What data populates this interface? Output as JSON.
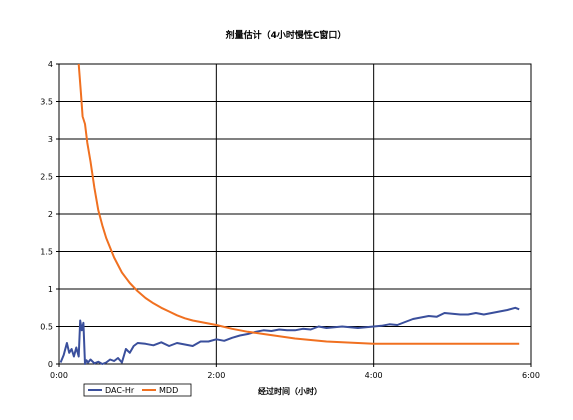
{
  "chart_data": {
    "type": "line",
    "title": "剂量估计（4小时慢性C窗口）",
    "xlabel": "经过时间（小时）",
    "ylabel": "",
    "xlim": [
      0,
      6
    ],
    "ylim": [
      0,
      4
    ],
    "x_tick_labels": [
      "0:00",
      "2:00",
      "4:00",
      "6:00"
    ],
    "x_ticks": [
      0,
      2,
      4,
      6
    ],
    "y_ticks": [
      0,
      0.5,
      1,
      1.5,
      2,
      2.5,
      3,
      3.5,
      4
    ],
    "y_tick_labels": [
      "0",
      "0.5",
      "1",
      "1.5",
      "2",
      "2.5",
      "3",
      "3.5",
      "4"
    ],
    "grid": true,
    "legend_position": "bottom-left",
    "series": [
      {
        "name": "DAC-Hr",
        "color": "#3a4f9c",
        "x": [
          0.02,
          0.06,
          0.1,
          0.13,
          0.16,
          0.19,
          0.22,
          0.25,
          0.27,
          0.29,
          0.31,
          0.33,
          0.35,
          0.37,
          0.4,
          0.45,
          0.5,
          0.55,
          0.6,
          0.65,
          0.7,
          0.75,
          0.8,
          0.85,
          0.9,
          0.95,
          1.0,
          1.1,
          1.2,
          1.3,
          1.4,
          1.5,
          1.6,
          1.7,
          1.8,
          1.9,
          2.0,
          2.1,
          2.2,
          2.3,
          2.4,
          2.5,
          2.6,
          2.7,
          2.8,
          2.9,
          3.0,
          3.1,
          3.2,
          3.3,
          3.4,
          3.5,
          3.6,
          3.7,
          3.8,
          3.9,
          4.0,
          4.1,
          4.2,
          4.3,
          4.4,
          4.5,
          4.6,
          4.7,
          4.8,
          4.9,
          5.0,
          5.1,
          5.2,
          5.3,
          5.4,
          5.5,
          5.6,
          5.7,
          5.8,
          5.85
        ],
        "values": [
          0.02,
          0.12,
          0.28,
          0.15,
          0.2,
          0.1,
          0.22,
          0.1,
          0.58,
          0.45,
          0.55,
          0.0,
          0.05,
          0.02,
          0.06,
          0.01,
          0.03,
          0.0,
          0.02,
          0.06,
          0.04,
          0.08,
          0.02,
          0.2,
          0.15,
          0.24,
          0.28,
          0.27,
          0.25,
          0.29,
          0.24,
          0.28,
          0.26,
          0.24,
          0.3,
          0.3,
          0.33,
          0.31,
          0.35,
          0.38,
          0.4,
          0.43,
          0.45,
          0.44,
          0.46,
          0.45,
          0.45,
          0.47,
          0.46,
          0.5,
          0.48,
          0.49,
          0.5,
          0.49,
          0.48,
          0.49,
          0.5,
          0.51,
          0.53,
          0.52,
          0.56,
          0.6,
          0.62,
          0.64,
          0.63,
          0.68,
          0.67,
          0.66,
          0.66,
          0.68,
          0.66,
          0.68,
          0.7,
          0.72,
          0.75,
          0.73
        ]
      },
      {
        "name": "MDD",
        "color": "#f07020",
        "x": [
          0.25,
          0.28,
          0.3,
          0.33,
          0.36,
          0.4,
          0.45,
          0.5,
          0.55,
          0.6,
          0.7,
          0.8,
          0.9,
          1.0,
          1.1,
          1.2,
          1.3,
          1.4,
          1.5,
          1.6,
          1.7,
          1.8,
          1.9,
          2.0,
          2.2,
          2.4,
          2.6,
          2.8,
          3.0,
          3.2,
          3.4,
          3.6,
          3.8,
          4.0,
          4.5,
          5.0,
          5.5,
          5.85
        ],
        "values": [
          4.0,
          3.6,
          3.3,
          3.2,
          2.95,
          2.7,
          2.35,
          2.05,
          1.85,
          1.68,
          1.42,
          1.22,
          1.08,
          0.97,
          0.88,
          0.81,
          0.75,
          0.7,
          0.65,
          0.61,
          0.58,
          0.56,
          0.54,
          0.52,
          0.47,
          0.43,
          0.4,
          0.37,
          0.34,
          0.32,
          0.3,
          0.29,
          0.28,
          0.27,
          0.27,
          0.27,
          0.27,
          0.27
        ]
      }
    ]
  }
}
